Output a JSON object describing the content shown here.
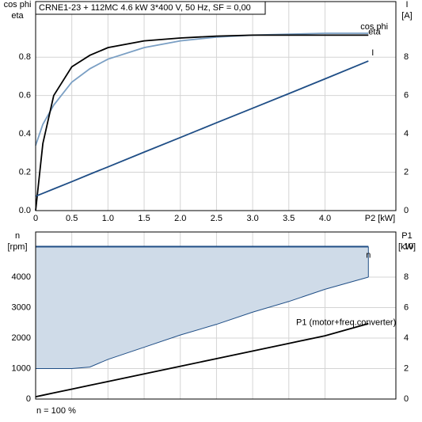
{
  "chart_data": [
    {
      "type": "line",
      "title": "CRNE1-23 + 112MC   4.6 kW   3*400 V, 50 Hz, SF = 0,00",
      "y_label": [
        "cos phi",
        "eta"
      ],
      "y2_label": [
        "I",
        "[A]"
      ],
      "x_label": "P2 [kW]",
      "x": [
        0,
        0.1,
        0.25,
        0.5,
        0.75,
        1,
        1.5,
        2,
        2.5,
        3,
        3.5,
        4,
        4.6
      ],
      "series": [
        {
          "name": "cos phi",
          "color": "#7a9fc4",
          "values": [
            0.34,
            0.45,
            0.55,
            0.67,
            0.74,
            0.79,
            0.85,
            0.885,
            0.905,
            0.915,
            0.92,
            0.925,
            0.925
          ]
        },
        {
          "name": "eta",
          "color": "#000000",
          "values": [
            0,
            0.35,
            0.6,
            0.75,
            0.81,
            0.85,
            0.885,
            0.9,
            0.91,
            0.915,
            0.915,
            0.915,
            0.915
          ]
        },
        {
          "name": "I",
          "color": "#1f4e86",
          "axis": "y2",
          "values": [
            0.75,
            0.9,
            1.13,
            1.51,
            1.9,
            2.28,
            3.05,
            3.81,
            4.58,
            5.34,
            6.1,
            6.87,
            7.8
          ]
        }
      ],
      "xlim": [
        0,
        4.98
      ],
      "ylim": [
        0,
        1.09
      ],
      "y2lim": [
        0,
        10.9
      ],
      "xticks": [
        0,
        0.5,
        {
          "value": 1,
          "label": "1.0"
        },
        1.5,
        {
          "value": 2,
          "label": "2.0"
        },
        2.5,
        {
          "value": 3,
          "label": "3.0"
        },
        3.5,
        {
          "value": 4,
          "label": "4.0"
        }
      ],
      "yticks": [
        {
          "value": 0,
          "label": "0.0"
        },
        0.2,
        0.4,
        0.6,
        0.8
      ],
      "y2ticks": [
        0,
        2,
        4,
        6,
        8
      ],
      "grid": true
    },
    {
      "type": "area",
      "y_label": [
        "n",
        "[rpm]"
      ],
      "y2_label": [
        "P1",
        "[kW]"
      ],
      "annotation": "n = 100 %",
      "x": [
        0,
        0.1,
        0.25,
        0.5,
        0.75,
        1,
        1.5,
        2,
        2.5,
        3,
        3.5,
        4,
        4.6
      ],
      "series": [
        {
          "name": "n",
          "color": "#1f4e86",
          "fill": "#cfdbe8",
          "values": [
            5000,
            5000,
            5000,
            5000,
            5000,
            5000,
            5000,
            5000,
            5000,
            5000,
            5000,
            5000,
            5000
          ],
          "lower": [
            1000,
            1000,
            1000,
            1000,
            1050,
            1300,
            1700,
            2100,
            2450,
            2850,
            3200,
            3600,
            4000
          ]
        },
        {
          "name": "P1 (motor+freq.converter)",
          "color": "#000000",
          "axis": "y2",
          "values": [
            0.15,
            0.25,
            0.4,
            0.65,
            0.9,
            1.15,
            1.65,
            2.15,
            2.65,
            3.15,
            3.65,
            4.15,
            4.95
          ]
        }
      ],
      "xlim": [
        0,
        4.98
      ],
      "ylim": [
        0,
        5480
      ],
      "y2lim": [
        0,
        10.96
      ],
      "yticks": [
        0,
        1000,
        2000,
        3000,
        4000
      ],
      "y2ticks": [
        0,
        2,
        4,
        6,
        8,
        10
      ],
      "grid": true
    }
  ]
}
